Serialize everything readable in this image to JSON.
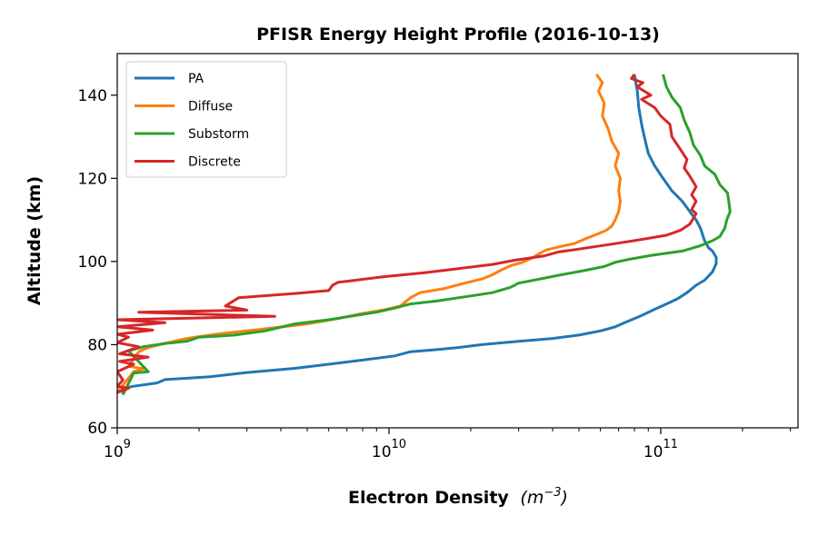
{
  "chart_data": {
    "type": "line",
    "title": "PFISR Energy Height Profile (2016-10-13)",
    "xlabel_main": "Electron Density",
    "xlabel_unit_base": "m",
    "xlabel_unit_exp": "−3",
    "ylabel": "Altitude (km)",
    "x_scale": "log",
    "xlim": [
      1000000000.0,
      320000000000.0
    ],
    "ylim": [
      60,
      150
    ],
    "x_ticks": [
      {
        "value": 1000000000.0,
        "base": "10",
        "exp": "9"
      },
      {
        "value": 10000000000.0,
        "base": "10",
        "exp": "10"
      },
      {
        "value": 100000000000.0,
        "base": "10",
        "exp": "11"
      }
    ],
    "y_ticks": [
      60,
      80,
      100,
      120,
      140
    ],
    "grid": false,
    "legend_position": "top-left",
    "series": [
      {
        "name": "PA",
        "color": "#1f77b4",
        "points": [
          [
            1050000000.0,
            68
          ],
          [
            1050000000.0,
            69.5
          ],
          [
            1150000000.0,
            70
          ],
          [
            1400000000.0,
            70.8
          ],
          [
            1500000000.0,
            71.6
          ],
          [
            2200000000.0,
            72.3
          ],
          [
            3000000000.0,
            73.3
          ],
          [
            4500000000.0,
            74.3
          ],
          [
            6000000000.0,
            75.3
          ],
          [
            8000000000.0,
            76.3
          ],
          [
            10500000000.0,
            77.3
          ],
          [
            12000000000.0,
            78.3
          ],
          [
            15000000000.0,
            78.8
          ],
          [
            18000000000.0,
            79.3
          ],
          [
            22000000000.0,
            80
          ],
          [
            30000000000.0,
            80.8
          ],
          [
            40000000000.0,
            81.5
          ],
          [
            50000000000.0,
            82.3
          ],
          [
            60000000000.0,
            83.3
          ],
          [
            68000000000.0,
            84.3
          ],
          [
            75000000000.0,
            85.5
          ],
          [
            85000000000.0,
            87
          ],
          [
            95000000000.0,
            88.5
          ],
          [
            105000000000.0,
            89.8
          ],
          [
            115000000000.0,
            91
          ],
          [
            125000000000.0,
            92.5
          ],
          [
            135000000000.0,
            94.3
          ],
          [
            145000000000.0,
            95.5
          ],
          [
            155000000000.0,
            97.5
          ],
          [
            160000000000.0,
            99.5
          ],
          [
            160000000000.0,
            101
          ],
          [
            155000000000.0,
            102.5
          ],
          [
            150000000000.0,
            103.3
          ],
          [
            145000000000.0,
            105
          ],
          [
            140000000000.0,
            108
          ],
          [
            135000000000.0,
            110
          ],
          [
            128000000000.0,
            112
          ],
          [
            120000000000.0,
            114.5
          ],
          [
            110000000000.0,
            117
          ],
          [
            102000000000.0,
            120
          ],
          [
            95000000000.0,
            123
          ],
          [
            90000000000.0,
            126
          ],
          [
            87000000000.0,
            130
          ],
          [
            85000000000.0,
            133
          ],
          [
            83000000000.0,
            137
          ],
          [
            82000000000.0,
            141
          ],
          [
            80000000000.0,
            145
          ]
        ]
      },
      {
        "name": "Diffuse",
        "color": "#ff7f0e",
        "points": [
          [
            1000000000.0,
            68.5
          ],
          [
            1150000000.0,
            73.5
          ],
          [
            1250000000.0,
            74.2
          ],
          [
            1100000000.0,
            74.8
          ],
          [
            1200000000.0,
            78.3
          ],
          [
            1300000000.0,
            79.3
          ],
          [
            1500000000.0,
            80.3
          ],
          [
            1800000000.0,
            81.5
          ],
          [
            2300000000.0,
            82.5
          ],
          [
            3500000000.0,
            83.8
          ],
          [
            5000000000.0,
            85
          ],
          [
            6500000000.0,
            86.3
          ],
          [
            8000000000.0,
            87.5
          ],
          [
            9500000000.0,
            88.3
          ],
          [
            11000000000.0,
            89.3
          ],
          [
            11500000000.0,
            90.3
          ],
          [
            12000000000.0,
            91.3
          ],
          [
            13000000000.0,
            92.5
          ],
          [
            16000000000.0,
            93.5
          ],
          [
            19000000000.0,
            94.8
          ],
          [
            22000000000.0,
            95.8
          ],
          [
            24000000000.0,
            96.8
          ],
          [
            26000000000.0,
            98
          ],
          [
            28000000000.0,
            99
          ],
          [
            31000000000.0,
            99.8
          ],
          [
            34000000000.0,
            101
          ],
          [
            36000000000.0,
            102
          ],
          [
            38000000000.0,
            102.8
          ],
          [
            42000000000.0,
            103.5
          ],
          [
            48000000000.0,
            104.3
          ],
          [
            53000000000.0,
            105.5
          ],
          [
            58000000000.0,
            106.5
          ],
          [
            63000000000.0,
            107.5
          ],
          [
            66000000000.0,
            108.5
          ],
          [
            68000000000.0,
            110
          ],
          [
            70000000000.0,
            112
          ],
          [
            71000000000.0,
            114.5
          ],
          [
            70000000000.0,
            117
          ],
          [
            71000000000.0,
            120
          ],
          [
            68000000000.0,
            123
          ],
          [
            70000000000.0,
            126
          ],
          [
            66000000000.0,
            129
          ],
          [
            64000000000.0,
            132
          ],
          [
            61000000000.0,
            135
          ],
          [
            62000000000.0,
            138
          ],
          [
            59000000000.0,
            141
          ],
          [
            61000000000.0,
            143
          ],
          [
            58000000000.0,
            145
          ]
        ]
      },
      {
        "name": "Substorm",
        "color": "#2ca02c",
        "points": [
          [
            1050000000.0,
            68
          ],
          [
            1150000000.0,
            73.2
          ],
          [
            1300000000.0,
            73.5
          ],
          [
            1100000000.0,
            78.5
          ],
          [
            1250000000.0,
            79.5
          ],
          [
            1500000000.0,
            80.3
          ],
          [
            1800000000.0,
            80.8
          ],
          [
            2000000000.0,
            81.8
          ],
          [
            2700000000.0,
            82.3
          ],
          [
            3500000000.0,
            83.3
          ],
          [
            4500000000.0,
            85
          ],
          [
            6000000000.0,
            86
          ],
          [
            7500000000.0,
            87
          ],
          [
            9000000000.0,
            87.8
          ],
          [
            10500000000.0,
            88.8
          ],
          [
            12000000000.0,
            89.8
          ],
          [
            15000000000.0,
            90.5
          ],
          [
            19000000000.0,
            91.5
          ],
          [
            24000000000.0,
            92.5
          ],
          [
            28000000000.0,
            93.8
          ],
          [
            30000000000.0,
            94.8
          ],
          [
            36000000000.0,
            95.8
          ],
          [
            43000000000.0,
            96.8
          ],
          [
            52000000000.0,
            97.8
          ],
          [
            62000000000.0,
            98.8
          ],
          [
            68000000000.0,
            99.8
          ],
          [
            76000000000.0,
            100.5
          ],
          [
            93000000000.0,
            101.5
          ],
          [
            120000000000.0,
            102.5
          ],
          [
            140000000000.0,
            103.8
          ],
          [
            155000000000.0,
            105
          ],
          [
            165000000000.0,
            106
          ],
          [
            172000000000.0,
            108
          ],
          [
            175000000000.0,
            110
          ],
          [
            180000000000.0,
            112
          ],
          [
            178000000000.0,
            114.5
          ],
          [
            176000000000.0,
            116.5
          ],
          [
            165000000000.0,
            118.5
          ],
          [
            158000000000.0,
            121
          ],
          [
            145000000000.0,
            123
          ],
          [
            140000000000.0,
            125.5
          ],
          [
            132000000000.0,
            128
          ],
          [
            128000000000.0,
            131
          ],
          [
            122000000000.0,
            134
          ],
          [
            118000000000.0,
            137
          ],
          [
            110000000000.0,
            139.5
          ],
          [
            105000000000.0,
            142
          ],
          [
            102000000000.0,
            145
          ]
        ]
      },
      {
        "name": "Discrete",
        "color": "#d62728",
        "points": [
          [
            1000000000.0,
            68.5
          ],
          [
            1100000000.0,
            69.5
          ],
          [
            1000000000.0,
            70
          ],
          [
            1050000000.0,
            71.5
          ],
          [
            1000000000.0,
            73.5
          ],
          [
            1150000000.0,
            75.3
          ],
          [
            1020000000.0,
            76
          ],
          [
            1300000000.0,
            77
          ],
          [
            1020000000.0,
            77.8
          ],
          [
            1200000000.0,
            79.5
          ],
          [
            1000000000.0,
            80.5
          ],
          [
            1100000000.0,
            81.8
          ],
          [
            1000000000.0,
            82.5
          ],
          [
            1350000000.0,
            83.5
          ],
          [
            1000000000.0,
            84.3
          ],
          [
            1500000000.0,
            85.3
          ],
          [
            1000000000.0,
            86
          ],
          [
            3800000000.0,
            86.8
          ],
          [
            1200000000.0,
            87.8
          ],
          [
            3000000000.0,
            88.3
          ],
          [
            2500000000.0,
            89.3
          ],
          [
            2800000000.0,
            91.3
          ],
          [
            4500000000.0,
            92.3
          ],
          [
            6000000000.0,
            93
          ],
          [
            6200000000.0,
            94.3
          ],
          [
            6500000000.0,
            95
          ],
          [
            9500000000.0,
            96.3
          ],
          [
            13500000000.0,
            97.3
          ],
          [
            18000000000.0,
            98.3
          ],
          [
            24000000000.0,
            99.3
          ],
          [
            29000000000.0,
            100.3
          ],
          [
            37000000000.0,
            101.3
          ],
          [
            42000000000.0,
            102.3
          ],
          [
            50000000000.0,
            103
          ],
          [
            68000000000.0,
            104.3
          ],
          [
            85000000000.0,
            105.3
          ],
          [
            105000000000.0,
            106.3
          ],
          [
            118000000000.0,
            107.5
          ],
          [
            128000000000.0,
            109
          ],
          [
            135000000000.0,
            111.5
          ],
          [
            130000000000.0,
            112.5
          ],
          [
            135000000000.0,
            114.5
          ],
          [
            130000000000.0,
            116
          ],
          [
            135000000000.0,
            118
          ],
          [
            128000000000.0,
            120.5
          ],
          [
            122000000000.0,
            122.5
          ],
          [
            125000000000.0,
            124.5
          ],
          [
            118000000000.0,
            127
          ],
          [
            110000000000.0,
            130
          ],
          [
            108000000000.0,
            133
          ],
          [
            100000000000.0,
            135
          ],
          [
            95000000000.0,
            137
          ],
          [
            85000000000.0,
            139
          ],
          [
            92000000000.0,
            140
          ],
          [
            82000000000.0,
            142
          ],
          [
            86000000000.0,
            143
          ],
          [
            78000000000.0,
            144
          ],
          [
            80000000000.0,
            145
          ]
        ]
      }
    ]
  }
}
